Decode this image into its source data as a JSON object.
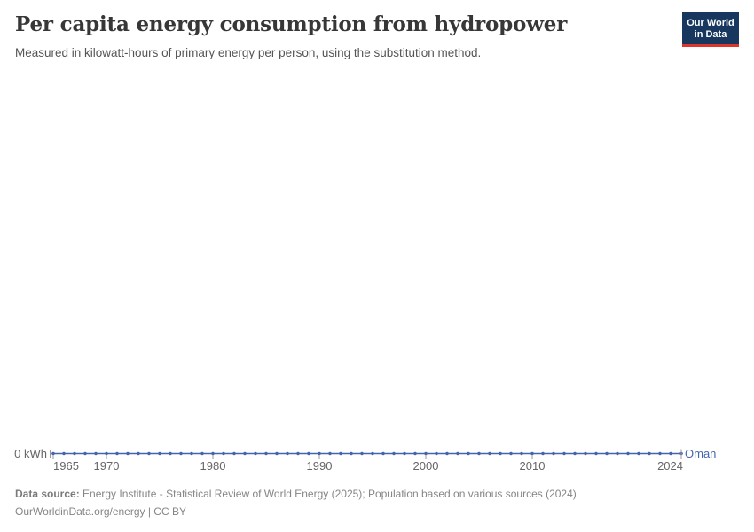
{
  "header": {
    "title": "Per capita energy consumption from hydropower",
    "subtitle": "Measured in kilowatt-hours of primary energy per person, using the substitution method.",
    "logo": {
      "line1": "Our World",
      "line2": "in Data"
    }
  },
  "footer": {
    "source_label": "Data source:",
    "source_text": " Energy Institute - Statistical Review of World Energy (2025); Population based on various sources (2024)",
    "license_line": "OurWorldinData.org/energy | CC BY"
  },
  "chart_data": {
    "type": "line",
    "title": "Per capita energy consumption from hydropower",
    "entity": "Oman",
    "unit": "kWh",
    "y_axis_label": "0 kWh",
    "x_ticks": [
      1965,
      1970,
      1980,
      1990,
      2000,
      2010,
      2024
    ],
    "y_ticks": [
      0
    ],
    "xlim": [
      1965,
      2024
    ],
    "ylim": [
      0,
      0
    ],
    "grid": "single-zero-line",
    "x": [
      1965,
      1966,
      1967,
      1968,
      1969,
      1970,
      1971,
      1972,
      1973,
      1974,
      1975,
      1976,
      1977,
      1978,
      1979,
      1980,
      1981,
      1982,
      1983,
      1984,
      1985,
      1986,
      1987,
      1988,
      1989,
      1990,
      1991,
      1992,
      1993,
      1994,
      1995,
      1996,
      1997,
      1998,
      1999,
      2000,
      2001,
      2002,
      2003,
      2004,
      2005,
      2006,
      2007,
      2008,
      2009,
      2010,
      2011,
      2012,
      2013,
      2014,
      2015,
      2016,
      2017,
      2018,
      2019,
      2020,
      2021,
      2022,
      2023,
      2024
    ],
    "series": [
      {
        "name": "Oman",
        "color": "#4265ad",
        "values": [
          0,
          0,
          0,
          0,
          0,
          0,
          0,
          0,
          0,
          0,
          0,
          0,
          0,
          0,
          0,
          0,
          0,
          0,
          0,
          0,
          0,
          0,
          0,
          0,
          0,
          0,
          0,
          0,
          0,
          0,
          0,
          0,
          0,
          0,
          0,
          0,
          0,
          0,
          0,
          0,
          0,
          0,
          0,
          0,
          0,
          0,
          0,
          0,
          0,
          0,
          0,
          0,
          0,
          0,
          0,
          0,
          0,
          0,
          0,
          0
        ]
      }
    ],
    "colors": {
      "line": "#4265ad",
      "axis_text": "#666666",
      "tick": "#999999",
      "gridline": "#a8a8a8"
    }
  }
}
